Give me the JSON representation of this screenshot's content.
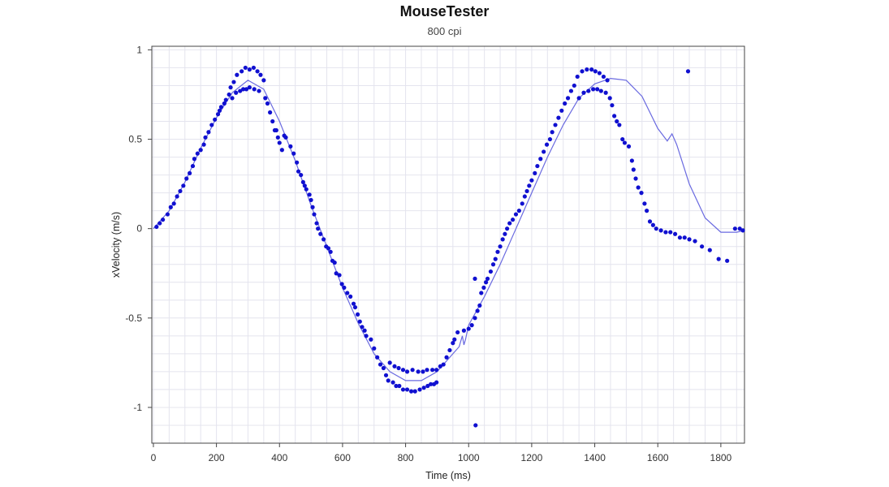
{
  "chart_data": {
    "type": "scatter",
    "title": "MouseTester",
    "subtitle": "800 cpi",
    "xlabel": "Time (ms)",
    "ylabel": "xVelocity (m/s)",
    "xlim": [
      -5,
      1875
    ],
    "ylim": [
      -1.2,
      1.02
    ],
    "x_ticks": [
      0,
      200,
      400,
      600,
      800,
      1000,
      1200,
      1400,
      1600,
      1800
    ],
    "y_ticks": [
      1,
      0.5,
      0,
      -0.5,
      -1
    ],
    "y_tick_labels": [
      "1",
      "0.5",
      "0",
      "-0.5",
      "-1"
    ],
    "grid": true,
    "colors": {
      "points": "#1010d0",
      "line": "#6a6ae0",
      "grid": "#e4e4ee",
      "frame": "#444444"
    },
    "series": [
      {
        "kind": "points",
        "points": [
          [
            10,
            0.01
          ],
          [
            20,
            0.03
          ],
          [
            30,
            0.05
          ],
          [
            45,
            0.08
          ],
          [
            55,
            0.12
          ],
          [
            65,
            0.14
          ],
          [
            75,
            0.18
          ],
          [
            85,
            0.21
          ],
          [
            95,
            0.24
          ],
          [
            105,
            0.28
          ],
          [
            115,
            0.31
          ],
          [
            125,
            0.35
          ],
          [
            130,
            0.39
          ],
          [
            140,
            0.42
          ],
          [
            150,
            0.44
          ],
          [
            160,
            0.47
          ],
          [
            165,
            0.51
          ],
          [
            175,
            0.54
          ],
          [
            185,
            0.58
          ],
          [
            195,
            0.61
          ],
          [
            205,
            0.64
          ],
          [
            210,
            0.66
          ],
          [
            215,
            0.68
          ],
          [
            225,
            0.7
          ],
          [
            230,
            0.72
          ],
          [
            240,
            0.75
          ],
          [
            245,
            0.79
          ],
          [
            255,
            0.82
          ],
          [
            265,
            0.86
          ],
          [
            250,
            0.73
          ],
          [
            262,
            0.76
          ],
          [
            275,
            0.77
          ],
          [
            285,
            0.78
          ],
          [
            295,
            0.78
          ],
          [
            305,
            0.79
          ],
          [
            320,
            0.78
          ],
          [
            335,
            0.77
          ],
          [
            280,
            0.88
          ],
          [
            292,
            0.9
          ],
          [
            305,
            0.89
          ],
          [
            318,
            0.9
          ],
          [
            330,
            0.88
          ],
          [
            340,
            0.86
          ],
          [
            350,
            0.83
          ],
          [
            355,
            0.73
          ],
          [
            362,
            0.7
          ],
          [
            370,
            0.65
          ],
          [
            378,
            0.6
          ],
          [
            385,
            0.55
          ],
          [
            390,
            0.55
          ],
          [
            395,
            0.51
          ],
          [
            400,
            0.48
          ],
          [
            408,
            0.44
          ],
          [
            415,
            0.52
          ],
          [
            420,
            0.51
          ],
          [
            435,
            0.46
          ],
          [
            445,
            0.42
          ],
          [
            455,
            0.37
          ],
          [
            460,
            0.32
          ],
          [
            468,
            0.3
          ],
          [
            475,
            0.26
          ],
          [
            480,
            0.24
          ],
          [
            485,
            0.22
          ],
          [
            495,
            0.19
          ],
          [
            500,
            0.16
          ],
          [
            505,
            0.12
          ],
          [
            510,
            0.08
          ],
          [
            518,
            0.03
          ],
          [
            522,
            0.0
          ],
          [
            530,
            -0.03
          ],
          [
            540,
            -0.06
          ],
          [
            548,
            -0.1
          ],
          [
            555,
            -0.11
          ],
          [
            562,
            -0.13
          ],
          [
            568,
            -0.18
          ],
          [
            575,
            -0.19
          ],
          [
            580,
            -0.25
          ],
          [
            590,
            -0.26
          ],
          [
            598,
            -0.31
          ],
          [
            605,
            -0.33
          ],
          [
            615,
            -0.36
          ],
          [
            625,
            -0.38
          ],
          [
            635,
            -0.42
          ],
          [
            640,
            -0.44
          ],
          [
            648,
            -0.48
          ],
          [
            655,
            -0.52
          ],
          [
            662,
            -0.55
          ],
          [
            670,
            -0.57
          ],
          [
            675,
            -0.6
          ],
          [
            690,
            -0.62
          ],
          [
            700,
            -0.67
          ],
          [
            710,
            -0.72
          ],
          [
            720,
            -0.76
          ],
          [
            730,
            -0.78
          ],
          [
            738,
            -0.82
          ],
          [
            745,
            -0.85
          ],
          [
            760,
            -0.86
          ],
          [
            770,
            -0.88
          ],
          [
            780,
            -0.88
          ],
          [
            792,
            -0.9
          ],
          [
            805,
            -0.9
          ],
          [
            818,
            -0.91
          ],
          [
            830,
            -0.91
          ],
          [
            845,
            -0.9
          ],
          [
            858,
            -0.89
          ],
          [
            870,
            -0.88
          ],
          [
            880,
            -0.87
          ],
          [
            890,
            -0.87
          ],
          [
            898,
            -0.86
          ],
          [
            750,
            -0.75
          ],
          [
            765,
            -0.77
          ],
          [
            778,
            -0.78
          ],
          [
            792,
            -0.79
          ],
          [
            805,
            -0.8
          ],
          [
            822,
            -0.79
          ],
          [
            840,
            -0.8
          ],
          [
            855,
            -0.8
          ],
          [
            868,
            -0.79
          ],
          [
            885,
            -0.79
          ],
          [
            898,
            -0.79
          ],
          [
            910,
            -0.77
          ],
          [
            920,
            -0.76
          ],
          [
            930,
            -0.72
          ],
          [
            940,
            -0.68
          ],
          [
            950,
            -0.64
          ],
          [
            955,
            -0.62
          ],
          [
            965,
            -0.58
          ],
          [
            985,
            -0.57
          ],
          [
            1000,
            -0.56
          ],
          [
            1010,
            -0.54
          ],
          [
            1020,
            -0.5
          ],
          [
            1028,
            -0.46
          ],
          [
            1035,
            -0.43
          ],
          [
            1040,
            -0.36
          ],
          [
            1048,
            -0.33
          ],
          [
            1055,
            -0.3
          ],
          [
            1060,
            -0.28
          ],
          [
            1070,
            -0.24
          ],
          [
            1078,
            -0.2
          ],
          [
            1085,
            -0.17
          ],
          [
            1092,
            -0.13
          ],
          [
            1100,
            -0.1
          ],
          [
            1108,
            -0.06
          ],
          [
            1115,
            -0.03
          ],
          [
            1122,
            0.0
          ],
          [
            1130,
            0.03
          ],
          [
            1140,
            0.05
          ],
          [
            1150,
            0.08
          ],
          [
            1160,
            0.1
          ],
          [
            1170,
            0.14
          ],
          [
            1178,
            0.18
          ],
          [
            1185,
            0.21
          ],
          [
            1192,
            0.24
          ],
          [
            1200,
            0.27
          ],
          [
            1210,
            0.31
          ],
          [
            1218,
            0.35
          ],
          [
            1228,
            0.39
          ],
          [
            1238,
            0.43
          ],
          [
            1248,
            0.47
          ],
          [
            1258,
            0.5
          ],
          [
            1265,
            0.54
          ],
          [
            1275,
            0.58
          ],
          [
            1285,
            0.62
          ],
          [
            1295,
            0.66
          ],
          [
            1305,
            0.7
          ],
          [
            1315,
            0.73
          ],
          [
            1325,
            0.77
          ],
          [
            1335,
            0.8
          ],
          [
            1345,
            0.85
          ],
          [
            1360,
            0.88
          ],
          [
            1375,
            0.89
          ],
          [
            1390,
            0.89
          ],
          [
            1402,
            0.88
          ],
          [
            1415,
            0.87
          ],
          [
            1428,
            0.85
          ],
          [
            1440,
            0.83
          ],
          [
            1350,
            0.73
          ],
          [
            1365,
            0.76
          ],
          [
            1380,
            0.77
          ],
          [
            1395,
            0.78
          ],
          [
            1408,
            0.78
          ],
          [
            1420,
            0.77
          ],
          [
            1435,
            0.76
          ],
          [
            1448,
            0.73
          ],
          [
            1455,
            0.69
          ],
          [
            1462,
            0.63
          ],
          [
            1470,
            0.6
          ],
          [
            1478,
            0.58
          ],
          [
            1488,
            0.5
          ],
          [
            1495,
            0.48
          ],
          [
            1508,
            0.46
          ],
          [
            1518,
            0.38
          ],
          [
            1523,
            0.33
          ],
          [
            1530,
            0.28
          ],
          [
            1538,
            0.23
          ],
          [
            1548,
            0.2
          ],
          [
            1558,
            0.14
          ],
          [
            1565,
            0.1
          ],
          [
            1575,
            0.04
          ],
          [
            1585,
            0.02
          ],
          [
            1595,
            0.0
          ],
          [
            1610,
            -0.01
          ],
          [
            1625,
            -0.02
          ],
          [
            1640,
            -0.02
          ],
          [
            1655,
            -0.03
          ],
          [
            1670,
            -0.05
          ],
          [
            1685,
            -0.05
          ],
          [
            1700,
            -0.06
          ],
          [
            1718,
            -0.07
          ],
          [
            1740,
            -0.1
          ],
          [
            1765,
            -0.12
          ],
          [
            1793,
            -0.17
          ],
          [
            1820,
            -0.18
          ],
          [
            1845,
            -0.0
          ],
          [
            1860,
            0.0
          ],
          [
            1870,
            -0.01
          ],
          [
            1696,
            0.88
          ],
          [
            1020,
            -0.28
          ],
          [
            1022,
            -1.1
          ]
        ]
      },
      {
        "kind": "line",
        "points": [
          [
            0,
            0.0
          ],
          [
            50,
            0.1
          ],
          [
            100,
            0.26
          ],
          [
            150,
            0.45
          ],
          [
            200,
            0.62
          ],
          [
            250,
            0.76
          ],
          [
            300,
            0.83
          ],
          [
            350,
            0.78
          ],
          [
            400,
            0.6
          ],
          [
            450,
            0.38
          ],
          [
            500,
            0.13
          ],
          [
            550,
            -0.1
          ],
          [
            600,
            -0.33
          ],
          [
            650,
            -0.53
          ],
          [
            700,
            -0.7
          ],
          [
            750,
            -0.8
          ],
          [
            800,
            -0.85
          ],
          [
            850,
            -0.85
          ],
          [
            900,
            -0.8
          ],
          [
            950,
            -0.7
          ],
          [
            970,
            -0.66
          ],
          [
            975,
            -0.63
          ],
          [
            980,
            -0.6
          ],
          [
            985,
            -0.65
          ],
          [
            990,
            -0.62
          ],
          [
            1000,
            -0.54
          ],
          [
            1050,
            -0.38
          ],
          [
            1100,
            -0.2
          ],
          [
            1150,
            0.0
          ],
          [
            1200,
            0.2
          ],
          [
            1250,
            0.4
          ],
          [
            1300,
            0.58
          ],
          [
            1350,
            0.73
          ],
          [
            1400,
            0.81
          ],
          [
            1450,
            0.84
          ],
          [
            1500,
            0.83
          ],
          [
            1550,
            0.74
          ],
          [
            1600,
            0.56
          ],
          [
            1630,
            0.49
          ],
          [
            1645,
            0.53
          ],
          [
            1660,
            0.47
          ],
          [
            1700,
            0.25
          ],
          [
            1750,
            0.06
          ],
          [
            1800,
            -0.02
          ],
          [
            1850,
            -0.02
          ],
          [
            1875,
            -0.01
          ]
        ]
      }
    ]
  }
}
